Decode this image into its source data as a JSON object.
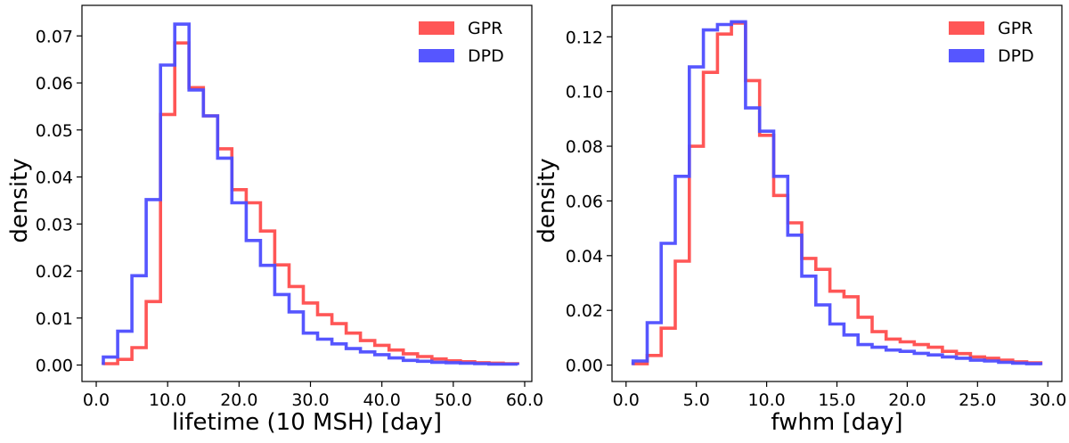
{
  "chart_data": [
    {
      "type": "line",
      "step": "histogram",
      "xlabel": "lifetime (10 MSH) [day]",
      "ylabel": "density",
      "xlim": [
        -2,
        61
      ],
      "ylim": [
        -0.0035,
        0.0765
      ],
      "xticks": [
        0,
        10,
        20,
        30,
        40,
        50,
        60
      ],
      "xtick_labels": [
        "0.0",
        "10.0",
        "20.0",
        "30.0",
        "40.0",
        "50.0",
        "60.0"
      ],
      "yticks": [
        0.0,
        0.01,
        0.02,
        0.03,
        0.04,
        0.05,
        0.06,
        0.07
      ],
      "ytick_labels": [
        "0.00",
        "0.01",
        "0.02",
        "0.03",
        "0.04",
        "0.05",
        "0.06",
        "0.07"
      ],
      "legend_position": "top-right",
      "bin_edges": [
        1,
        3,
        5,
        7,
        9,
        11,
        13,
        15,
        17,
        19,
        21,
        23,
        25,
        27,
        29,
        31,
        33,
        35,
        37,
        39,
        41,
        43,
        45,
        47,
        49,
        51,
        53,
        55,
        57,
        59
      ],
      "series": [
        {
          "name": "GPR",
          "color": "#ff4d4d",
          "values": [
            0.0003,
            0.0012,
            0.0037,
            0.0135,
            0.0533,
            0.0685,
            0.059,
            0.053,
            0.046,
            0.0373,
            0.0345,
            0.0285,
            0.0213,
            0.0167,
            0.0132,
            0.0107,
            0.0088,
            0.0068,
            0.0052,
            0.0042,
            0.0032,
            0.0024,
            0.0018,
            0.0013,
            0.0009,
            0.0007,
            0.0005,
            0.0004,
            0.0003
          ]
        },
        {
          "name": "DPD",
          "color": "#4d4dff",
          "values": [
            0.0017,
            0.0072,
            0.019,
            0.0352,
            0.0638,
            0.0725,
            0.0585,
            0.053,
            0.044,
            0.0345,
            0.0265,
            0.0212,
            0.015,
            0.0113,
            0.0068,
            0.0055,
            0.0045,
            0.0035,
            0.0028,
            0.0022,
            0.0015,
            0.001,
            0.0008,
            0.0006,
            0.0005,
            0.0004,
            0.0003,
            0.0002,
            0.0002
          ]
        }
      ]
    },
    {
      "type": "line",
      "step": "histogram",
      "xlabel": "fwhm [day]",
      "ylabel": "density",
      "xlim": [
        -1,
        31
      ],
      "ylim": [
        -0.006,
        0.1315
      ],
      "xticks": [
        0,
        5,
        10,
        15,
        20,
        25,
        30
      ],
      "xtick_labels": [
        "0.0",
        "5.0",
        "10.0",
        "15.0",
        "20.0",
        "25.0",
        "30.0"
      ],
      "yticks": [
        0.0,
        0.02,
        0.04,
        0.06,
        0.08,
        0.1,
        0.12
      ],
      "ytick_labels": [
        "0.00",
        "0.02",
        "0.04",
        "0.06",
        "0.08",
        "0.10",
        "0.12"
      ],
      "legend_position": "top-right",
      "bin_edges": [
        0.5,
        1.5,
        2.5,
        3.5,
        4.5,
        5.5,
        6.5,
        7.5,
        8.5,
        9.5,
        10.5,
        11.5,
        12.5,
        13.5,
        14.5,
        15.5,
        16.5,
        17.5,
        18.5,
        19.5,
        20.5,
        21.5,
        22.5,
        23.5,
        24.5,
        25.5,
        26.5,
        27.5,
        28.5,
        29.5
      ],
      "series": [
        {
          "name": "GPR",
          "color": "#ff4d4d",
          "values": [
            0.0005,
            0.0035,
            0.0135,
            0.038,
            0.08,
            0.107,
            0.121,
            0.125,
            0.104,
            0.084,
            0.062,
            0.052,
            0.039,
            0.035,
            0.027,
            0.025,
            0.0175,
            0.0122,
            0.0095,
            0.0085,
            0.0075,
            0.0065,
            0.005,
            0.0042,
            0.003,
            0.0025,
            0.0018,
            0.0012,
            0.0008
          ]
        },
        {
          "name": "DPD",
          "color": "#4d4dff",
          "values": [
            0.0015,
            0.0155,
            0.0445,
            0.069,
            0.109,
            0.1225,
            0.1245,
            0.1255,
            0.094,
            0.0855,
            0.069,
            0.0475,
            0.0325,
            0.022,
            0.015,
            0.011,
            0.0075,
            0.0065,
            0.0055,
            0.005,
            0.0043,
            0.0037,
            0.003,
            0.0025,
            0.0018,
            0.0015,
            0.001,
            0.0007,
            0.0005
          ]
        }
      ]
    }
  ]
}
